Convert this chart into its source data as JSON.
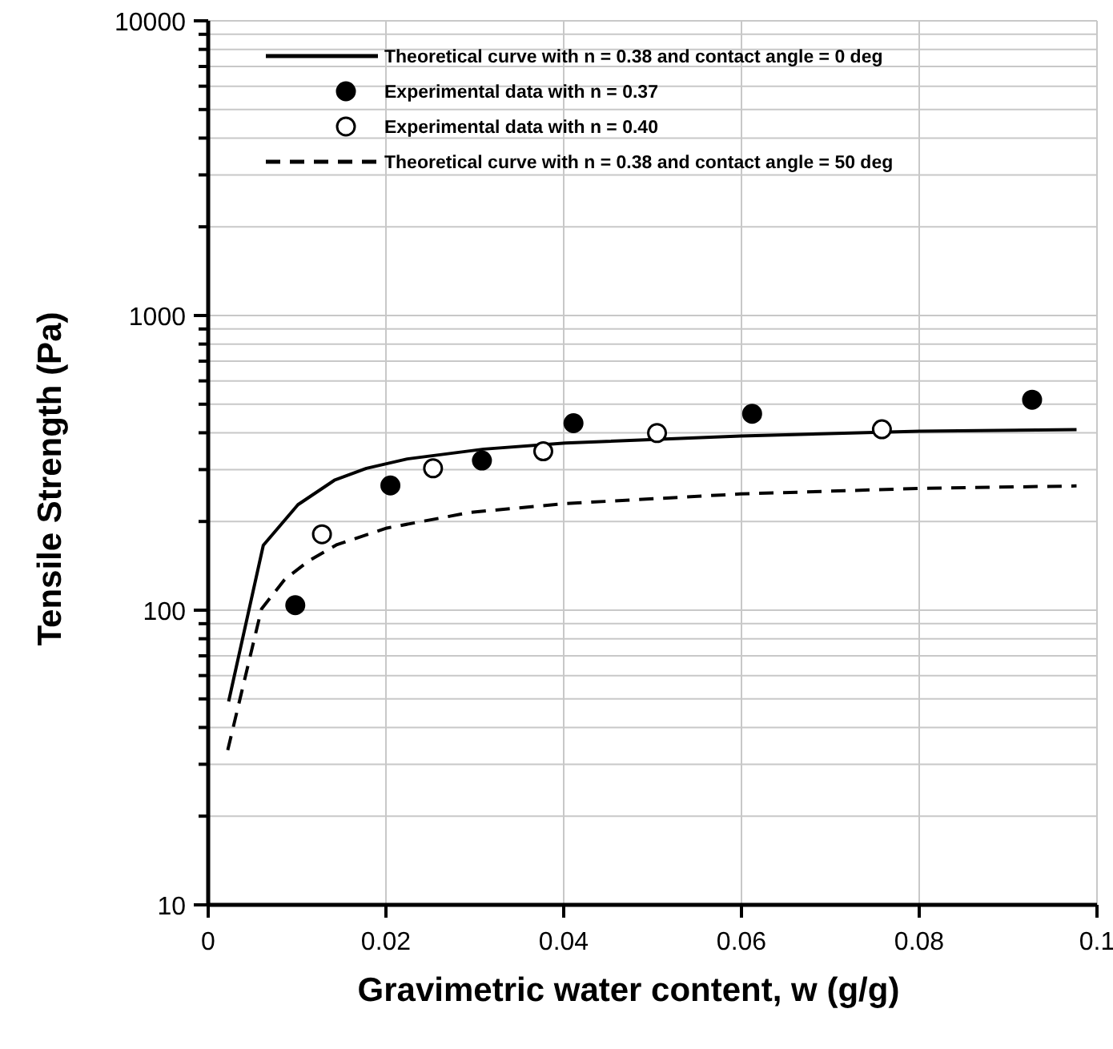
{
  "chart_data": {
    "type": "line",
    "xlabel": "Gravimetric water content, w (g/g)",
    "ylabel": "Tensile Strength (Pa)",
    "log": "y",
    "grid": "xy",
    "legend": "top",
    "xlim": [
      0,
      0.1
    ],
    "xticks": [
      0,
      0.02,
      0.04,
      0.06,
      0.08,
      0.1
    ],
    "ylim": [
      10,
      10000
    ],
    "yticks": [
      10,
      {
        "value": 20,
        "label": null
      },
      {
        "value": 30,
        "label": null
      },
      {
        "value": 40,
        "label": null
      },
      {
        "value": 50,
        "label": null
      },
      {
        "value": 60,
        "label": null
      },
      {
        "value": 70,
        "label": null
      },
      {
        "value": 80,
        "label": null
      },
      {
        "value": 90,
        "label": null
      },
      100,
      {
        "value": 200,
        "label": null
      },
      {
        "value": 300,
        "label": null
      },
      {
        "value": 400,
        "label": null
      },
      {
        "value": 500,
        "label": null
      },
      {
        "value": 600,
        "label": null
      },
      {
        "value": 700,
        "label": null
      },
      {
        "value": 800,
        "label": null
      },
      {
        "value": 900,
        "label": null
      },
      1000,
      {
        "value": 2000,
        "label": null
      },
      {
        "value": 3000,
        "label": null
      },
      {
        "value": 4000,
        "label": null
      },
      {
        "value": 5000,
        "label": null
      },
      {
        "value": 6000,
        "label": null
      },
      {
        "value": 7000,
        "label": null
      },
      {
        "value": 8000,
        "label": null
      },
      {
        "value": 9000,
        "label": null
      },
      10000
    ],
    "series": [
      {
        "name": "Theoretical curve with n = 0.38 and contact angle = 0 deg",
        "color": "#000000",
        "line_style": "solid",
        "x": [
          0.0023,
          0.0062,
          0.0101,
          0.0142,
          0.0178,
          0.0224,
          0.031,
          0.0402,
          0.0599,
          0.08,
          0.0977
        ],
        "values": [
          49,
          166,
          228,
          276,
          303,
          326,
          352,
          369,
          390,
          405,
          410
        ]
      },
      {
        "name": "Experimental data with n = 0.37",
        "type": "scatter",
        "color": "#000000",
        "marker": "circle",
        "x": [
          0.0098,
          0.0205,
          0.0308,
          0.0411,
          0.0612,
          0.0927
        ],
        "values": [
          104,
          265,
          322,
          431,
          464,
          518
        ]
      },
      {
        "name": "Experimental data with n = 0.40",
        "type": "scatter",
        "color": "#ffffff",
        "marker": "circle",
        "x": [
          0.0128,
          0.0253,
          0.0377,
          0.0505,
          0.0758
        ],
        "values": [
          181,
          303,
          346,
          399,
          411
        ]
      },
      {
        "name": "Theoretical curve with n = 0.38 and contact angle = 50 deg",
        "color": "#000000",
        "line_style": "dashed",
        "x": [
          0.0022,
          0.006,
          0.0086,
          0.0113,
          0.0145,
          0.0201,
          0.0296,
          0.0402,
          0.0599,
          0.08,
          0.0977
        ],
        "values": [
          33.5,
          101,
          127,
          147,
          167,
          190,
          215,
          230,
          248,
          259,
          264
        ]
      }
    ]
  }
}
